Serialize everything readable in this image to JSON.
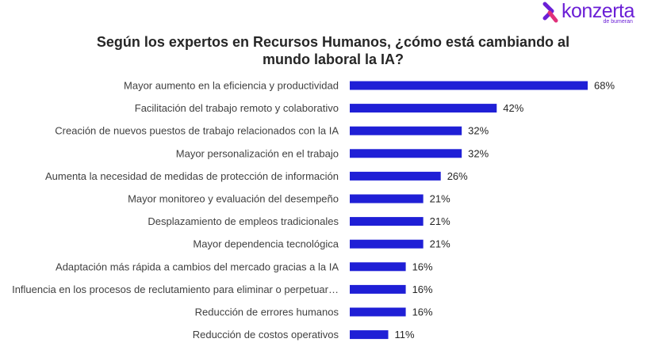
{
  "brand": {
    "name": "konzerta",
    "tagline": "de bumeran",
    "color": "#6b1fd6",
    "accent": "#e0307a",
    "icon": "konzerta-logo-icon"
  },
  "chart_data": {
    "type": "bar",
    "orientation": "horizontal",
    "title": "Según los expertos en Recursos Humanos, ¿cómo está cambiando al mundo laboral la IA?",
    "categories": [
      "Mayor aumento en la eficiencia y productividad",
      "Facilitación del trabajo remoto y colaborativo",
      "Creación de nuevos puestos de trabajo relacionados con la IA",
      "Mayor personalización en el trabajo",
      "Aumenta la necesidad de medidas de protección de información",
      "Mayor monitoreo y evaluación del desempeño",
      "Desplazamiento de empleos tradicionales",
      "Mayor dependencia tecnológica",
      "Adaptación más rápida a cambios del mercado gracias a la IA",
      "Influencia en los procesos de reclutamiento para eliminar o perpetuar…",
      "Reducción de errores humanos",
      "Reducción de costos operativos"
    ],
    "values": [
      68,
      42,
      32,
      32,
      26,
      21,
      21,
      21,
      16,
      16,
      16,
      11
    ],
    "value_labels": [
      "68%",
      "42%",
      "32%",
      "32%",
      "26%",
      "21%",
      "21%",
      "21%",
      "16%",
      "16%",
      "16%",
      "11%"
    ],
    "unit": "%",
    "xlim": [
      0,
      68
    ],
    "bar_color": "#1f1fd6",
    "grid": false,
    "legend": "none"
  }
}
